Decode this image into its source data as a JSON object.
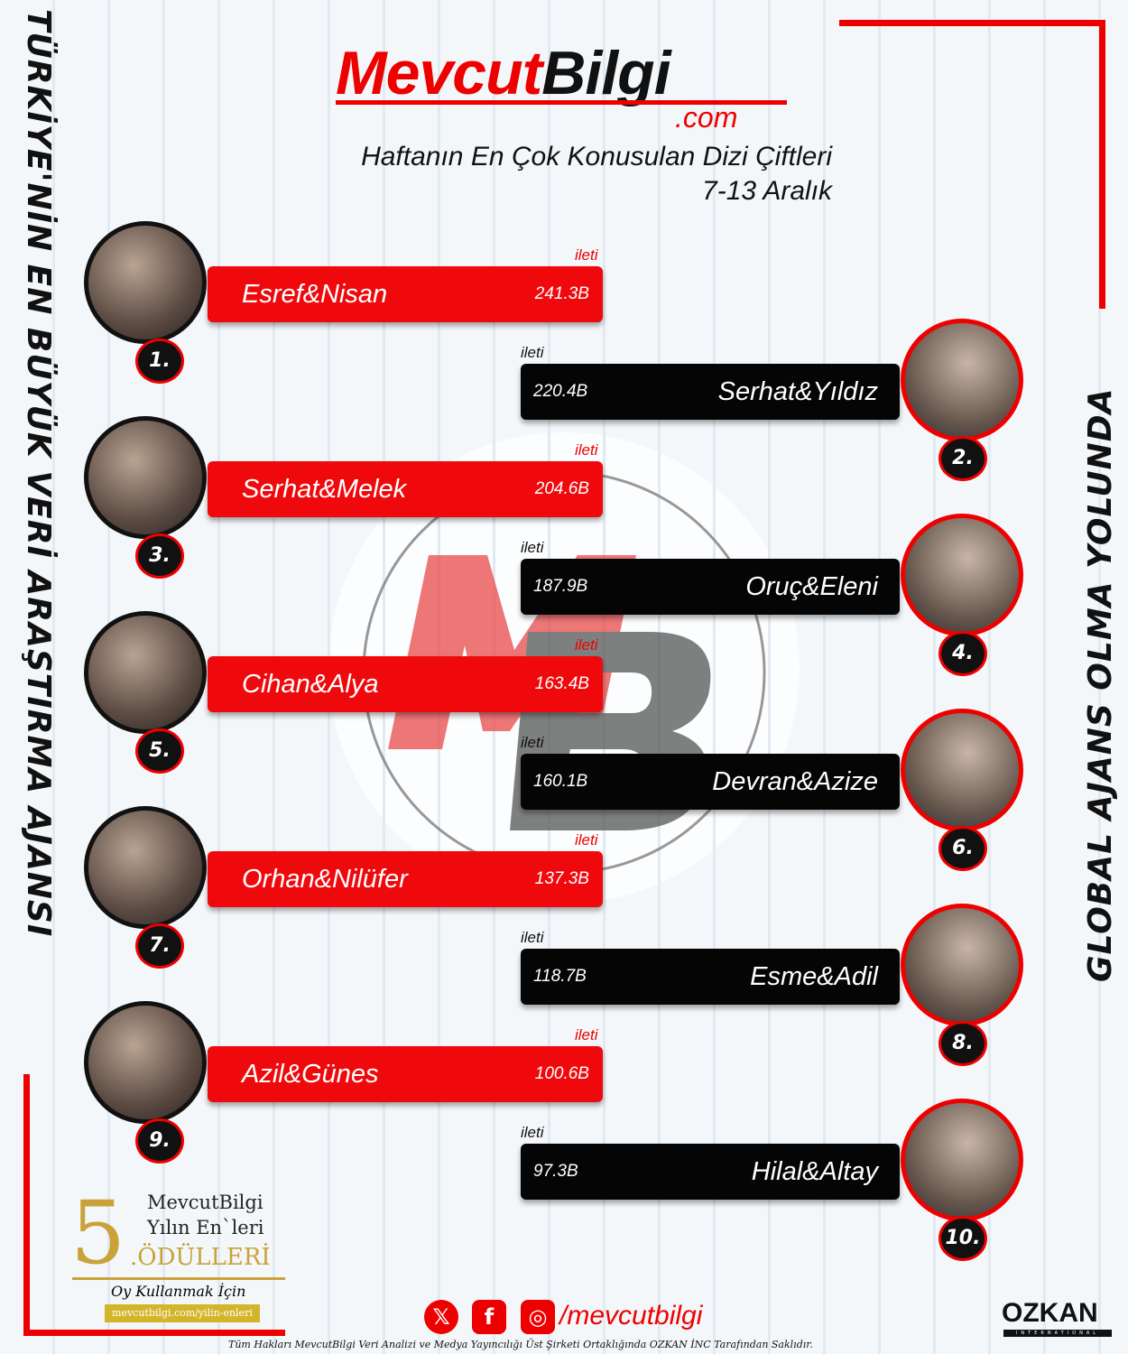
{
  "brand": {
    "name_red": "Mevcut",
    "name_black": "Bilgi",
    "domain": ".com"
  },
  "header": {
    "title": "Haftanın En Çok Konusulan Dizi Çiftleri",
    "date_range": "7-13 Aralık"
  },
  "side_text": {
    "left": "TÜRKİYE'NİN EN BÜYÜK VERİ ARAŞTIRMA AJANSI",
    "right": "GLOBAL AJANS OLMA YOLUNDA"
  },
  "unit_label": "ileti",
  "ranking": [
    {
      "rank": "1.",
      "name": "Esref&Nisan",
      "value": "241.3B"
    },
    {
      "rank": "2.",
      "name": "Serhat&Yıldız",
      "value": "220.4B"
    },
    {
      "rank": "3.",
      "name": "Serhat&Melek",
      "value": "204.6B"
    },
    {
      "rank": "4.",
      "name": "Oruç&Eleni",
      "value": "187.9B"
    },
    {
      "rank": "5.",
      "name": "Cihan&Alya",
      "value": "163.4B"
    },
    {
      "rank": "6.",
      "name": "Devran&Azize",
      "value": "160.1B"
    },
    {
      "rank": "7.",
      "name": "Orhan&Nilüfer",
      "value": "137.3B"
    },
    {
      "rank": "8.",
      "name": "Esme&Adil",
      "value": "118.7B"
    },
    {
      "rank": "9.",
      "name": "Azil&Günes",
      "value": "100.6B"
    },
    {
      "rank": "10.",
      "name": "Hilal&Altay",
      "value": "97.3B"
    }
  ],
  "award": {
    "number": "5",
    "line1": "MevcutBilgi",
    "line2": "Yılın En`leri",
    "line3": ".ÖDÜLLERİ",
    "vote": "Oy Kullanmak İçin",
    "url": "mevcutbilgi.com/yilin-enleri"
  },
  "social": {
    "x": "𝕏",
    "facebook": "f",
    "instagram": "◎",
    "handle": "/mevcutbilgi"
  },
  "partner": {
    "name": "OZKAN",
    "sub": "INTERNATIONAL"
  },
  "footer": "Tüm Hakları MevcutBilgi Veri Analizi ve Medya Yayıncılığı Üst Şirketi Ortaklığında OZKAN İNC Tarafından Saklıdır.",
  "colors": {
    "accent": "#f0090c",
    "dark": "#050505"
  }
}
